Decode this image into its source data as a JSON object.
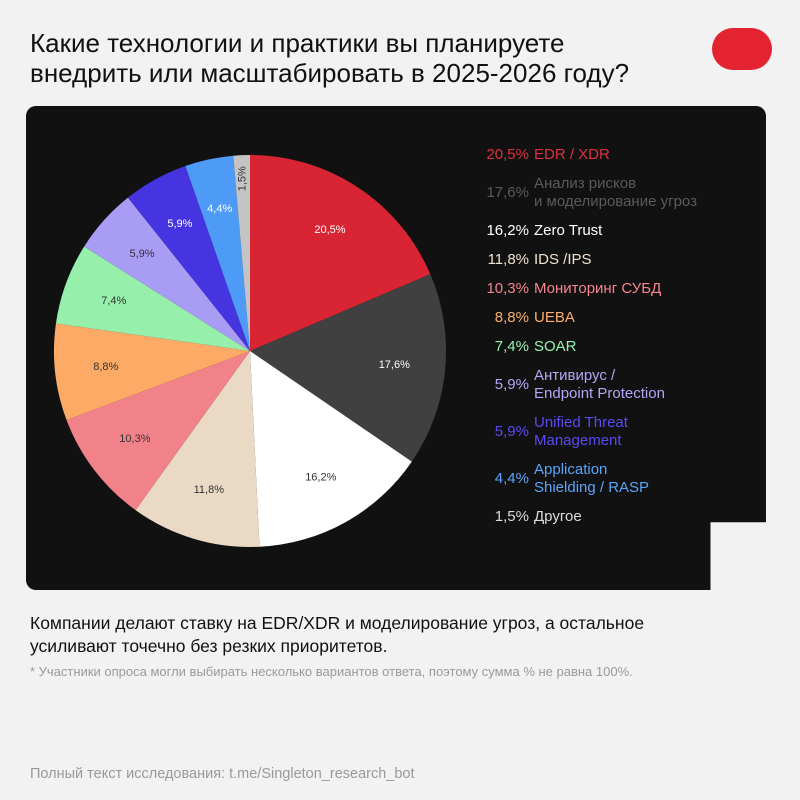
{
  "title_lines": [
    "Какие технологии и практики вы планируете",
    "внедрить или масштабировать в 2025-2026 году?"
  ],
  "caption_lines": [
    "Компании делают ставку на EDR/XDR и моделирование угроз, а остальное",
    "усиливают точечно без резких приоритетов."
  ],
  "note": "* Участники опроса могли выбирать несколько вариантов ответа, поэтому сумма % не равна 100%.",
  "footer": "Полный текст исследования: t.me/Singleton_research_bot",
  "chart_data": {
    "type": "pie",
    "slices": [
      {
        "label_lines": [
          "EDR / XDR"
        ],
        "value": 20.5,
        "display": "20,5%",
        "color": "#d92533",
        "legend_color": "#e0303e",
        "label_color": "#ffffff"
      },
      {
        "label_lines": [
          "Анализ рисков",
          "и моделирование угроз"
        ],
        "value": 17.6,
        "display": "17,6%",
        "color": "#404040",
        "legend_color": "#5a5a5a",
        "label_color": "#ffffff"
      },
      {
        "label_lines": [
          "Zero Trust"
        ],
        "value": 16.2,
        "display": "16,2%",
        "color": "#ffffff",
        "legend_color": "#ffffff",
        "label_color": "#333333"
      },
      {
        "label_lines": [
          "IDS /IPS"
        ],
        "value": 11.8,
        "display": "11,8%",
        "color": "#ead9c4",
        "legend_color": "#f0e2cf",
        "label_color": "#333333"
      },
      {
        "label_lines": [
          "Мониторинг СУБД"
        ],
        "value": 10.3,
        "display": "10,3%",
        "color": "#f2828a",
        "legend_color": "#f5868f",
        "label_color": "#333333"
      },
      {
        "label_lines": [
          "UEBA"
        ],
        "value": 8.8,
        "display": "8,8%",
        "color": "#fcaa66",
        "legend_color": "#fdb06c",
        "label_color": "#333333"
      },
      {
        "label_lines": [
          "SOAR"
        ],
        "value": 7.4,
        "display": "7,4%",
        "color": "#96f0ab",
        "legend_color": "#99f2b0",
        "label_color": "#333333"
      },
      {
        "label_lines": [
          "Антивирус /",
          "Endpoint Protection"
        ],
        "value": 5.9,
        "display": "5,9%",
        "color": "#a99cf4",
        "legend_color": "#b3a7f7",
        "label_color": "#333333"
      },
      {
        "label_lines": [
          "Unified Threat",
          "Management"
        ],
        "value": 5.9,
        "display": "5,9%",
        "color": "#4534e0",
        "legend_color": "#5a4af2",
        "label_color": "#ffffff"
      },
      {
        "label_lines": [
          "Application",
          "Shielding / RASP"
        ],
        "value": 4.4,
        "display": "4,4%",
        "color": "#4d9af7",
        "legend_color": "#5aa5fb",
        "label_color": "#ffffff"
      },
      {
        "label_lines": [
          "Другое"
        ],
        "value": 1.5,
        "display": "1,5%",
        "color": "#c4c4c4",
        "legend_color": "#dddddd",
        "label_color": "#333333"
      }
    ]
  }
}
